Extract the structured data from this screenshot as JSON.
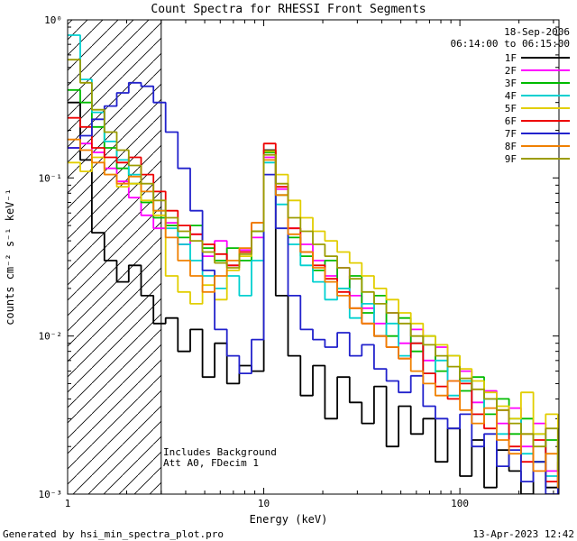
{
  "title": "Count Spectra for RHESSI Front Segments",
  "header": {
    "date": "18-Sep-2006",
    "time_range": "06:14:00 to 06:15:00"
  },
  "annotations": [
    "Includes Background",
    "Att A0, FDecim 1"
  ],
  "footer": {
    "generated_by": "Generated by hsi_min_spectra_plot.pro",
    "timestamp": "13-Apr-2023 12:42"
  },
  "chart_data": {
    "type": "line",
    "subtype": "step-histogram",
    "title": "Count Spectra for RHESSI Front Segments",
    "xlabel": "Energy (keV)",
    "ylabel": "counts cm⁻² s⁻¹ keV⁻¹",
    "xscale": "log",
    "yscale": "log",
    "xlim": [
      1,
      320
    ],
    "ylim": [
      0.001,
      1
    ],
    "grid": false,
    "legend_position": "top-right",
    "x_ticks": [
      1,
      10,
      100
    ],
    "x_tick_labels": [
      "1",
      "10",
      "100"
    ],
    "y_ticks": [
      0.001,
      0.01,
      0.1,
      1
    ],
    "y_tick_labels": [
      "10⁻³",
      "10⁻²",
      "10⁻¹",
      "10⁰"
    ],
    "hatch_region_kev": [
      1,
      3
    ],
    "energies_kev": [
      1.0,
      1.16,
      1.33,
      1.54,
      1.78,
      2.05,
      2.37,
      2.74,
      3.16,
      3.65,
      4.22,
      4.87,
      5.62,
      6.49,
      7.5,
      8.66,
      10.0,
      11.5,
      13.3,
      15.4,
      17.8,
      20.5,
      23.7,
      27.4,
      31.6,
      36.5,
      42.2,
      48.7,
      56.2,
      64.9,
      75.0,
      86.6,
      100,
      115,
      133,
      154,
      178,
      205,
      237,
      274,
      316
    ],
    "series": [
      {
        "name": "1F",
        "color": "#000000",
        "values": [
          0.3,
          0.13,
          0.045,
          0.03,
          0.022,
          0.028,
          0.018,
          0.012,
          0.013,
          0.008,
          0.011,
          0.0055,
          0.009,
          0.005,
          0.0065,
          0.006,
          0.15,
          0.018,
          0.0075,
          0.0042,
          0.0065,
          0.003,
          0.0055,
          0.0038,
          0.0028,
          0.0048,
          0.002,
          0.0036,
          0.0024,
          0.003,
          0.0016,
          0.0026,
          0.0013,
          0.0022,
          0.0011,
          0.0019,
          0.0014,
          0.001,
          0.0016,
          0.0011,
          0.0013
        ]
      },
      {
        "name": "2F",
        "color": "#FF00FF",
        "values": [
          0.155,
          0.165,
          0.145,
          0.115,
          0.095,
          0.075,
          0.058,
          0.048,
          0.052,
          0.038,
          0.044,
          0.032,
          0.04,
          0.028,
          0.035,
          0.042,
          0.135,
          0.085,
          0.048,
          0.038,
          0.03,
          0.024,
          0.027,
          0.018,
          0.015,
          0.012,
          0.014,
          0.009,
          0.011,
          0.007,
          0.0085,
          0.0052,
          0.006,
          0.0038,
          0.0045,
          0.0028,
          0.0035,
          0.002,
          0.0028,
          0.0014,
          0.0022
        ]
      },
      {
        "name": "3F",
        "color": "#00BB00",
        "values": [
          0.36,
          0.3,
          0.21,
          0.155,
          0.115,
          0.092,
          0.07,
          0.056,
          0.05,
          0.042,
          0.05,
          0.036,
          0.03,
          0.036,
          0.03,
          0.046,
          0.145,
          0.078,
          0.042,
          0.032,
          0.026,
          0.03,
          0.02,
          0.024,
          0.014,
          0.018,
          0.01,
          0.013,
          0.008,
          0.01,
          0.006,
          0.0075,
          0.0045,
          0.0055,
          0.0032,
          0.004,
          0.0024,
          0.003,
          0.0016,
          0.0022,
          0.0012
        ]
      },
      {
        "name": "4F",
        "color": "#00D0D0",
        "values": [
          0.8,
          0.42,
          0.26,
          0.17,
          0.13,
          0.105,
          0.082,
          0.062,
          0.048,
          0.038,
          0.03,
          0.024,
          0.02,
          0.024,
          0.018,
          0.03,
          0.125,
          0.068,
          0.038,
          0.028,
          0.022,
          0.017,
          0.02,
          0.013,
          0.016,
          0.01,
          0.012,
          0.0075,
          0.009,
          0.0058,
          0.007,
          0.0042,
          0.0052,
          0.0032,
          0.004,
          0.0024,
          0.003,
          0.0018,
          0.0024,
          0.0013,
          0.0018
        ]
      },
      {
        "name": "5F",
        "color": "#E2CE00",
        "values": [
          0.125,
          0.11,
          0.135,
          0.105,
          0.088,
          0.092,
          0.072,
          0.058,
          0.024,
          0.019,
          0.016,
          0.021,
          0.017,
          0.026,
          0.032,
          0.052,
          0.148,
          0.105,
          0.072,
          0.056,
          0.046,
          0.04,
          0.034,
          0.029,
          0.024,
          0.02,
          0.017,
          0.014,
          0.012,
          0.01,
          0.0088,
          0.0075,
          0.0062,
          0.0052,
          0.0044,
          0.0036,
          0.003,
          0.0044,
          0.0024,
          0.0032,
          0.0018
        ]
      },
      {
        "name": "6F",
        "color": "#EE0000",
        "values": [
          0.24,
          0.21,
          0.155,
          0.135,
          0.125,
          0.135,
          0.105,
          0.082,
          0.062,
          0.05,
          0.044,
          0.038,
          0.033,
          0.028,
          0.034,
          0.052,
          0.165,
          0.088,
          0.048,
          0.034,
          0.028,
          0.023,
          0.019,
          0.015,
          0.012,
          0.01,
          0.0085,
          0.0072,
          0.009,
          0.0058,
          0.0048,
          0.004,
          0.005,
          0.0032,
          0.0026,
          0.0034,
          0.002,
          0.0016,
          0.0022,
          0.0012,
          0.0016
        ]
      },
      {
        "name": "7F",
        "color": "#2222CC",
        "values": [
          0.155,
          0.185,
          0.235,
          0.285,
          0.345,
          0.4,
          0.38,
          0.3,
          0.195,
          0.115,
          0.062,
          0.026,
          0.011,
          0.0075,
          0.0058,
          0.0095,
          0.105,
          0.048,
          0.018,
          0.011,
          0.0095,
          0.0085,
          0.0105,
          0.0075,
          0.0088,
          0.0062,
          0.0052,
          0.0044,
          0.0056,
          0.0036,
          0.003,
          0.0026,
          0.0032,
          0.002,
          0.0024,
          0.0015,
          0.0019,
          0.0012,
          0.0016,
          0.001,
          0.0013
        ]
      },
      {
        "name": "8F",
        "color": "#F08000",
        "values": [
          0.175,
          0.15,
          0.125,
          0.105,
          0.092,
          0.102,
          0.082,
          0.062,
          0.042,
          0.03,
          0.024,
          0.019,
          0.024,
          0.03,
          0.036,
          0.052,
          0.13,
          0.078,
          0.044,
          0.034,
          0.027,
          0.022,
          0.018,
          0.015,
          0.012,
          0.01,
          0.0085,
          0.0072,
          0.006,
          0.005,
          0.0042,
          0.0052,
          0.0034,
          0.0028,
          0.0035,
          0.0022,
          0.0018,
          0.0024,
          0.0014,
          0.0018,
          0.0011
        ]
      },
      {
        "name": "9F",
        "color": "#9C9C00",
        "values": [
          0.56,
          0.4,
          0.27,
          0.195,
          0.15,
          0.12,
          0.092,
          0.072,
          0.056,
          0.046,
          0.04,
          0.034,
          0.029,
          0.027,
          0.033,
          0.046,
          0.14,
          0.092,
          0.056,
          0.046,
          0.038,
          0.032,
          0.027,
          0.023,
          0.019,
          0.016,
          0.014,
          0.012,
          0.01,
          0.0088,
          0.0075,
          0.0064,
          0.0054,
          0.0046,
          0.004,
          0.0034,
          0.0028,
          0.0024,
          0.002,
          0.0026,
          0.0014
        ]
      }
    ]
  }
}
